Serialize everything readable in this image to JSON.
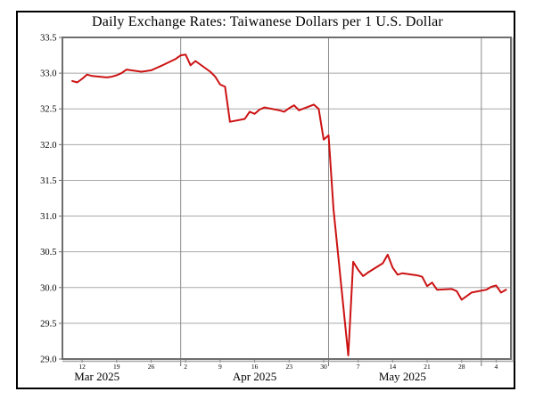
{
  "title": "Daily Exchange Rates: Taiwanese Dollars per 1 U.S. Dollar",
  "colors": {
    "line": "#cc1212",
    "frame": "#6e6e6e",
    "frame_shadow": "#a6a6a6",
    "grid": "#a8a8a8",
    "month_grid": "#8a8a8a",
    "tick": "#6e6e6e",
    "border": "#000000",
    "text": "#000000",
    "background": "#ffffff"
  },
  "chart_data": {
    "type": "line",
    "title": "Daily Exchange Rates: Taiwanese Dollars per 1 U.S. Dollar",
    "xlabel": "",
    "ylabel": "",
    "grid": true,
    "legend": "none",
    "ylim": [
      29.0,
      33.5
    ],
    "y_ticks": [
      33.5,
      33.0,
      32.5,
      32.0,
      31.5,
      31.0,
      30.5,
      30.0,
      29.5,
      29.0
    ],
    "x_domain": [
      "2025-03-08",
      "2025-06-07"
    ],
    "x_ticks": [
      {
        "date": "2025-03-12",
        "label": "12"
      },
      {
        "date": "2025-03-19",
        "label": "19"
      },
      {
        "date": "2025-03-26",
        "label": "26"
      },
      {
        "date": "2025-04-02",
        "label": "2"
      },
      {
        "date": "2025-04-09",
        "label": "9"
      },
      {
        "date": "2025-04-16",
        "label": "16"
      },
      {
        "date": "2025-04-23",
        "label": "23"
      },
      {
        "date": "2025-04-30",
        "label": "30"
      },
      {
        "date": "2025-05-07",
        "label": "7"
      },
      {
        "date": "2025-05-14",
        "label": "14"
      },
      {
        "date": "2025-05-21",
        "label": "21"
      },
      {
        "date": "2025-05-28",
        "label": "28"
      },
      {
        "date": "2025-06-04",
        "label": "4"
      }
    ],
    "month_gridlines": [
      "2025-04-01",
      "2025-05-01",
      "2025-06-01"
    ],
    "month_labels": [
      {
        "date": "2025-03-15",
        "label": "Mar 2025"
      },
      {
        "date": "2025-04-16",
        "label": "Apr 2025"
      },
      {
        "date": "2025-05-16",
        "label": "May 2025"
      }
    ],
    "series": [
      {
        "points": [
          [
            "2025-03-10",
            32.89
          ],
          [
            "2025-03-11",
            32.87
          ],
          [
            "2025-03-12",
            32.92
          ],
          [
            "2025-03-13",
            32.98
          ],
          [
            "2025-03-14",
            32.96
          ],
          [
            "2025-03-17",
            32.94
          ],
          [
            "2025-03-18",
            32.95
          ],
          [
            "2025-03-19",
            32.97
          ],
          [
            "2025-03-20",
            33.0
          ],
          [
            "2025-03-21",
            33.05
          ],
          [
            "2025-03-24",
            33.02
          ],
          [
            "2025-03-25",
            33.03
          ],
          [
            "2025-03-26",
            33.04
          ],
          [
            "2025-03-27",
            33.07
          ],
          [
            "2025-03-28",
            33.1
          ],
          [
            "2025-03-31",
            33.2
          ],
          [
            "2025-04-01",
            33.25
          ],
          [
            "2025-04-02",
            33.26
          ],
          [
            "2025-04-03",
            33.11
          ],
          [
            "2025-04-04",
            33.17
          ],
          [
            "2025-04-07",
            33.02
          ],
          [
            "2025-04-08",
            32.95
          ],
          [
            "2025-04-09",
            32.84
          ],
          [
            "2025-04-10",
            32.81
          ],
          [
            "2025-04-11",
            32.32
          ],
          [
            "2025-04-14",
            32.36
          ],
          [
            "2025-04-15",
            32.46
          ],
          [
            "2025-04-16",
            32.43
          ],
          [
            "2025-04-17",
            32.49
          ],
          [
            "2025-04-18",
            32.52
          ],
          [
            "2025-04-21",
            32.48
          ],
          [
            "2025-04-22",
            32.46
          ],
          [
            "2025-04-23",
            32.51
          ],
          [
            "2025-04-24",
            32.55
          ],
          [
            "2025-04-25",
            32.48
          ],
          [
            "2025-04-28",
            32.56
          ],
          [
            "2025-04-29",
            32.5
          ],
          [
            "2025-04-30",
            32.07
          ],
          [
            "2025-05-01",
            32.13
          ],
          [
            "2025-05-02",
            31.1
          ],
          [
            "2025-05-05",
            29.05
          ],
          [
            "2025-05-06",
            30.36
          ],
          [
            "2025-05-07",
            30.25
          ],
          [
            "2025-05-08",
            30.16
          ],
          [
            "2025-05-09",
            30.21
          ],
          [
            "2025-05-12",
            30.34
          ],
          [
            "2025-05-13",
            30.46
          ],
          [
            "2025-05-14",
            30.28
          ],
          [
            "2025-05-15",
            30.18
          ],
          [
            "2025-05-16",
            30.2
          ],
          [
            "2025-05-19",
            30.17
          ],
          [
            "2025-05-20",
            30.15
          ],
          [
            "2025-05-21",
            30.02
          ],
          [
            "2025-05-22",
            30.07
          ],
          [
            "2025-05-23",
            29.97
          ],
          [
            "2025-05-26",
            29.98
          ],
          [
            "2025-05-27",
            29.95
          ],
          [
            "2025-05-28",
            29.83
          ],
          [
            "2025-05-29",
            29.88
          ],
          [
            "2025-05-30",
            29.93
          ],
          [
            "2025-06-02",
            29.97
          ],
          [
            "2025-06-03",
            30.01
          ],
          [
            "2025-06-04",
            30.03
          ],
          [
            "2025-06-05",
            29.93
          ],
          [
            "2025-06-06",
            29.97
          ]
        ]
      }
    ]
  }
}
